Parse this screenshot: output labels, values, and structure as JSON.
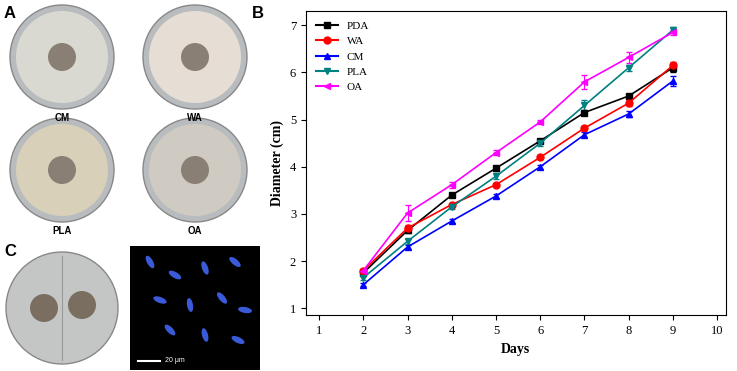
{
  "chart_data": {
    "type": "line",
    "x_label": "Days",
    "y_label": "Diameter (cm)",
    "x": [
      2,
      3,
      4,
      5,
      6,
      7,
      8,
      9
    ],
    "series": [
      {
        "name": "PDA",
        "color": "#000000",
        "marker": "square",
        "line_style": "solid",
        "values": [
          1.75,
          2.65,
          3.4,
          3.97,
          4.55,
          5.15,
          5.5,
          6.1
        ],
        "errors": [
          0.03,
          0.05,
          0.04,
          0.04,
          0.04,
          0.05,
          0.05,
          0.08
        ]
      },
      {
        "name": "WA",
        "color": "#ff0000",
        "marker": "circle",
        "line_style": "solid",
        "values": [
          1.8,
          2.7,
          3.2,
          3.62,
          4.2,
          4.82,
          5.35,
          6.15
        ],
        "errors": [
          0.03,
          0.06,
          0.04,
          0.04,
          0.04,
          0.05,
          0.06,
          0.07
        ]
      },
      {
        "name": "CM",
        "color": "#0000ff",
        "marker": "triangle_up",
        "line_style": "solid",
        "values": [
          1.5,
          2.3,
          2.85,
          3.38,
          4.0,
          4.68,
          5.12,
          5.82
        ],
        "errors": [
          0.03,
          0.04,
          0.04,
          0.04,
          0.04,
          0.05,
          0.07,
          0.1
        ]
      },
      {
        "name": "PLA",
        "color": "#008080",
        "marker": "triangle_down",
        "line_style": "solid",
        "values": [
          1.65,
          2.42,
          3.15,
          3.8,
          4.5,
          5.3,
          6.1,
          6.9
        ],
        "errors": [
          0.04,
          0.05,
          0.05,
          0.06,
          0.05,
          0.12,
          0.06,
          0.07
        ]
      },
      {
        "name": "OA",
        "color": "#ff00ff",
        "marker": "triangle_left",
        "line_style": "solid",
        "values": [
          1.8,
          3.02,
          3.62,
          4.3,
          4.95,
          5.8,
          6.32,
          6.85
        ],
        "errors": [
          0.04,
          0.18,
          0.06,
          0.05,
          0.04,
          0.15,
          0.12,
          0.06
        ]
      }
    ],
    "xlim": [
      0.7,
      10.2
    ],
    "xticks": [
      1,
      2,
      3,
      4,
      5,
      6,
      7,
      8,
      9,
      10
    ],
    "ylim": [
      0.85,
      7.3
    ],
    "yticks": [
      1,
      2,
      3,
      4,
      5,
      6,
      7
    ],
    "legend": "upper left",
    "grid": false
  },
  "panels": [
    {
      "label": "A",
      "plate_labels": [
        "CM",
        "WA",
        "PLA",
        "OA"
      ]
    },
    {
      "label": "B"
    },
    {
      "label": "C",
      "scale_bar": "20 μm"
    }
  ]
}
